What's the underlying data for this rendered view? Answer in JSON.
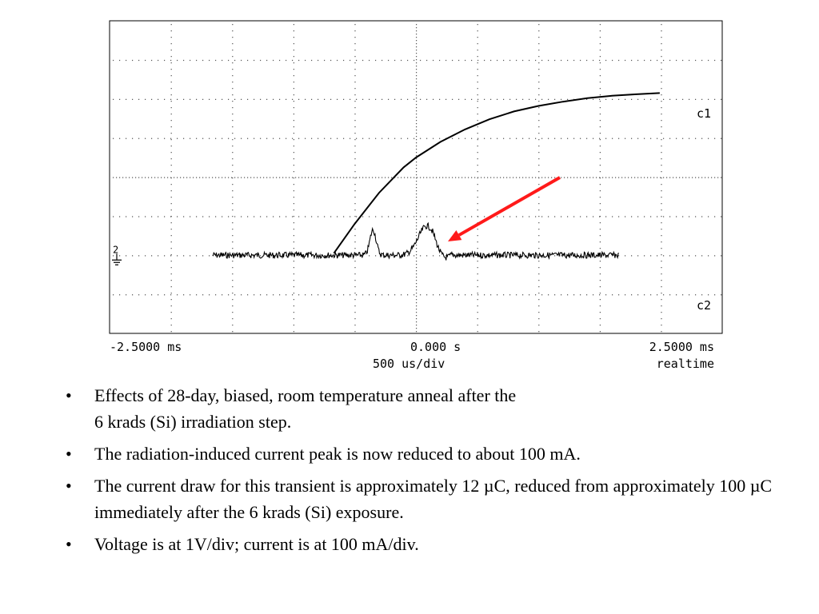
{
  "chart_data": {
    "type": "line",
    "title": "",
    "xlabel": "",
    "ylabel": "",
    "x_unit": "ms",
    "xlim": [
      -2.5,
      2.5
    ],
    "grid": true,
    "grid_divisions": {
      "x": 10,
      "y": 8
    },
    "time_per_div": "500 us/div",
    "mode": "realtime",
    "axis_labels": {
      "x_left": "-2.5000 ms",
      "x_center": "0.000  s",
      "x_right": "2.5000 ms",
      "time_div": "500  us/div",
      "mode": "realtime"
    },
    "series": [
      {
        "name": "c1",
        "label": "c1",
        "color": "#000000",
        "points": [
          [
            -0.67,
            -1.95
          ],
          [
            -0.5,
            -1.2
          ],
          [
            -0.3,
            -0.4
          ],
          [
            -0.1,
            0.25
          ],
          [
            0.0,
            0.5
          ],
          [
            0.2,
            0.9
          ],
          [
            0.4,
            1.22
          ],
          [
            0.6,
            1.48
          ],
          [
            0.8,
            1.68
          ],
          [
            1.0,
            1.82
          ],
          [
            1.2,
            1.93
          ],
          [
            1.4,
            2.02
          ],
          [
            1.6,
            2.08
          ],
          [
            1.8,
            2.12
          ],
          [
            1.99,
            2.15
          ]
        ]
      },
      {
        "name": "c2",
        "label": "c2",
        "color": "#000000",
        "baseline_div": -2.0,
        "x_range": [
          -1.66,
          1.66
        ],
        "peaks": [
          {
            "x": -0.35,
            "amplitude_div": 0.65
          },
          {
            "x": 0.09,
            "amplitude_div": 0.75
          }
        ]
      }
    ],
    "annotations": [
      {
        "type": "arrow",
        "color": "#ff1a1a",
        "points_to": "c2 current peak"
      }
    ],
    "ground_marker": "2"
  },
  "bullets": [
    "Effects of 28-day, biased, room temperature anneal after the\n6 krads (Si) irradiation step.",
    "The radiation-induced current peak is now reduced to about 100 mA.",
    "The current draw for this transient is approximately 12 µC, reduced from approximately 100 µC immediately after the 6 krads (Si) exposure.",
    "Voltage is at 1V/div; current is at 100 mA/div."
  ],
  "bullet_char": "•"
}
